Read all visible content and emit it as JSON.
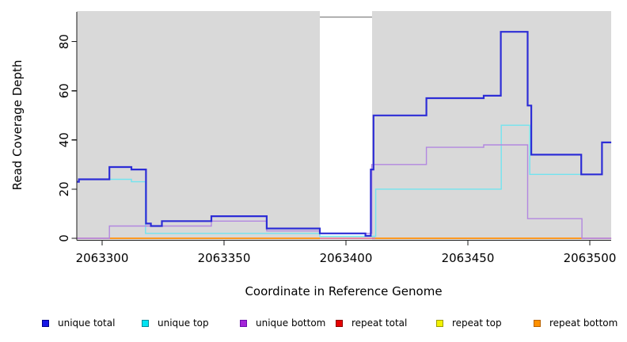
{
  "chart_data": {
    "type": "line",
    "subtype": "step",
    "title": "",
    "xlabel": "Coordinate in Reference Genome",
    "ylabel": "Read Coverage Depth",
    "x_ticks": [
      2063300,
      2063350,
      2063400,
      2063450,
      2063500
    ],
    "y_ticks": [
      0,
      20,
      40,
      60,
      80
    ],
    "x_range": [
      2063289.6,
      2063508.8
    ],
    "y_range": [
      0,
      92.5
    ],
    "grid": false,
    "legend_position": "bottom",
    "plot_bg_color": "#d9d9d9",
    "axis_color": "#1a1a1a",
    "masked_region": {
      "x_start": 2063389.3,
      "x_end": 2063410.7,
      "fill": "#ffffff",
      "top_border_value": 90,
      "top_border_color": "#8a8a8a"
    },
    "series": [
      {
        "name": "repeat total",
        "line_color": "#e05c7e",
        "width": 1.4,
        "segments": [
          {
            "points": [
              [
                2063289.6,
                0
              ]
            ],
            "end": 2063508.8
          }
        ]
      },
      {
        "name": "repeat bottom",
        "line_color": "#ff9822",
        "width": 2,
        "segments": [
          {
            "points": [
              [
                2063303,
                0
              ]
            ],
            "end": 2063389.3
          },
          {
            "points": [
              [
                2063412,
                0
              ]
            ],
            "end": 2063496.8
          }
        ]
      },
      {
        "name": "repeat top",
        "line_color": "#9cd69c",
        "width": 1.4,
        "segments": [
          {
            "points": [
              [
                2063389.3,
                0.7
              ]
            ],
            "end": 2063412
          }
        ]
      },
      {
        "name": "unique top",
        "line_color": "#72e4ef",
        "width": 1.4,
        "segments": [
          {
            "points": [
              [
                2063289.6,
                23
              ],
              [
                2063290.5,
                24
              ],
              [
                2063312,
                23
              ],
              [
                2063317.8,
                2
              ],
              [
                2063389.3,
                0.8
              ],
              [
                2063412.2,
                20
              ],
              [
                2063463.7,
                46
              ],
              [
                2063475.4,
                26
              ],
              [
                2063505,
                39
              ]
            ],
            "end": 2063508.8
          }
        ]
      },
      {
        "name": "unique bottom",
        "line_color": "#b287e0",
        "width": 1.4,
        "segments": [
          {
            "points": [
              [
                2063289.6,
                0
              ],
              [
                2063303,
                5
              ],
              [
                2063344.8,
                7
              ],
              [
                2063367.5,
                3
              ],
              [
                2063389.3,
                2
              ],
              [
                2063410.6,
                30
              ],
              [
                2063433,
                37
              ],
              [
                2063456.5,
                38
              ],
              [
                2063474.5,
                8
              ],
              [
                2063496.8,
                0
              ]
            ],
            "end": 2063508.8
          }
        ]
      },
      {
        "name": "unique total",
        "line_color": "#2d2dd6",
        "width": 2.2,
        "segments": [
          {
            "points": [
              [
                2063289.6,
                23
              ],
              [
                2063290.5,
                24
              ],
              [
                2063303,
                29
              ],
              [
                2063312,
                28
              ],
              [
                2063318,
                6
              ],
              [
                2063320,
                5
              ],
              [
                2063324.5,
                7
              ],
              [
                2063344.8,
                9
              ],
              [
                2063367.5,
                4
              ],
              [
                2063389.3,
                2
              ],
              [
                2063408,
                1
              ],
              [
                2063410.2,
                28
              ],
              [
                2063411.3,
                50
              ],
              [
                2063433,
                57
              ],
              [
                2063456.5,
                58
              ],
              [
                2063463.5,
                84
              ],
              [
                2063474.5,
                54
              ],
              [
                2063476,
                34
              ],
              [
                2063496.5,
                26
              ],
              [
                2063505,
                39
              ]
            ],
            "end": 2063508.8
          }
        ]
      }
    ]
  },
  "legend": {
    "items": [
      {
        "label": "unique total",
        "fill": "#1717e6",
        "border": "#00008b"
      },
      {
        "label": "unique top",
        "fill": "#00e4f2",
        "border": "#008b9b"
      },
      {
        "label": "unique bottom",
        "fill": "#a424d8",
        "border": "#6a0dad"
      },
      {
        "label": "repeat total",
        "fill": "#e60000",
        "border": "#8b0000"
      },
      {
        "label": "repeat top",
        "fill": "#f2f200",
        "border": "#9b9b00"
      },
      {
        "label": "repeat bottom",
        "fill": "#ff9100",
        "border": "#b86200"
      }
    ]
  }
}
